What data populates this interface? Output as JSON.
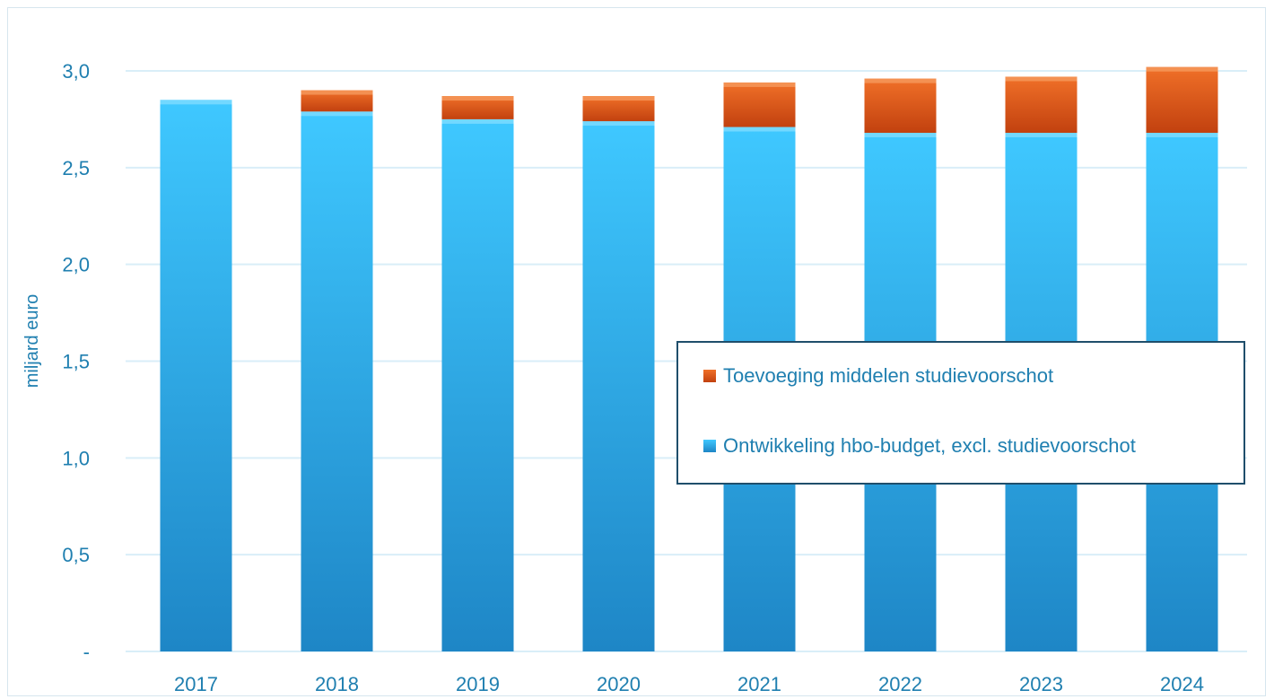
{
  "chart_data": {
    "type": "bar",
    "stacked": true,
    "ylabel": "miljard euro",
    "ylim": [
      0,
      3.0
    ],
    "yticks": [
      {
        "value": 0,
        "label": "-"
      },
      {
        "value": 0.5,
        "label": "0,5"
      },
      {
        "value": 1.0,
        "label": "1,0"
      },
      {
        "value": 1.5,
        "label": "1,5"
      },
      {
        "value": 2.0,
        "label": "2,0"
      },
      {
        "value": 2.5,
        "label": "2,5"
      },
      {
        "value": 3.0,
        "label": "3,0"
      }
    ],
    "grid": true,
    "categories": [
      "2017",
      "2018",
      "2019",
      "2020",
      "2021",
      "2022",
      "2023",
      "2024"
    ],
    "series": [
      {
        "name": "Ontwikkeling hbo-budget, excl. studievoorschot",
        "color": "#19a3e0",
        "values": [
          2.85,
          2.79,
          2.75,
          2.74,
          2.71,
          2.68,
          2.68,
          2.68
        ]
      },
      {
        "name": "Toevoeging middelen studievoorschot",
        "color": "#e8621a",
        "values": [
          0.0,
          0.11,
          0.12,
          0.13,
          0.23,
          0.28,
          0.29,
          0.34
        ]
      }
    ],
    "legend_position": "center-right"
  }
}
